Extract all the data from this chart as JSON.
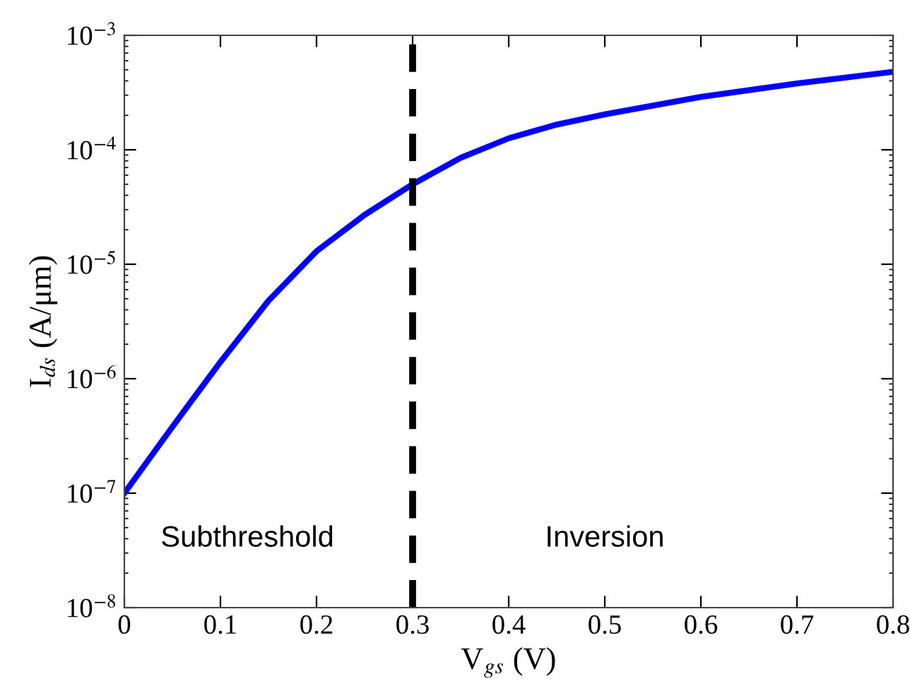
{
  "chart_data": {
    "type": "line",
    "xlabel": "V$_{gs}$ (V)",
    "ylabel": "I$_{ds}$ (A/μm)",
    "x": [
      0,
      0.05,
      0.1,
      0.15,
      0.2,
      0.25,
      0.3,
      0.35,
      0.4,
      0.45,
      0.5,
      0.6,
      0.7,
      0.8
    ],
    "series": [
      {
        "color": "#0000ff",
        "values": [
          1e-07,
          3.8e-07,
          1.4e-06,
          4.8e-06,
          1.3e-05,
          2.7e-05,
          5e-05,
          8.5e-05,
          0.000126,
          0.000166,
          0.000204,
          0.00029,
          0.00038,
          0.00048
        ]
      }
    ],
    "log": "y",
    "xlim": [
      0,
      0.8
    ],
    "ylim": [
      1e-08,
      0.001
    ],
    "xticks": [
      0,
      0.1,
      0.2,
      0.3,
      0.4,
      0.5,
      0.6,
      0.7,
      0.8
    ],
    "yticks": [
      {
        "value": 1e-08,
        "label": "10$^{−8}$"
      },
      {
        "value": 1e-07,
        "label": "10$^{−7}$"
      },
      {
        "value": 1e-06,
        "label": "10$^{−6}$"
      },
      {
        "value": 1e-05,
        "label": "10$^{−5}$"
      },
      {
        "value": 0.0001,
        "label": "10$^{−4}$"
      },
      {
        "value": 0.001,
        "label": "10$^{−3}$"
      }
    ],
    "ref_lines": [
      {
        "axis": "x",
        "value": 0.3,
        "color": "#000000",
        "line_style": "dashed"
      }
    ],
    "annotations": [
      "Subthreshold",
      "Inversion"
    ],
    "grid": false,
    "legend": false,
    "marker": "none",
    "line_style": "solid"
  }
}
